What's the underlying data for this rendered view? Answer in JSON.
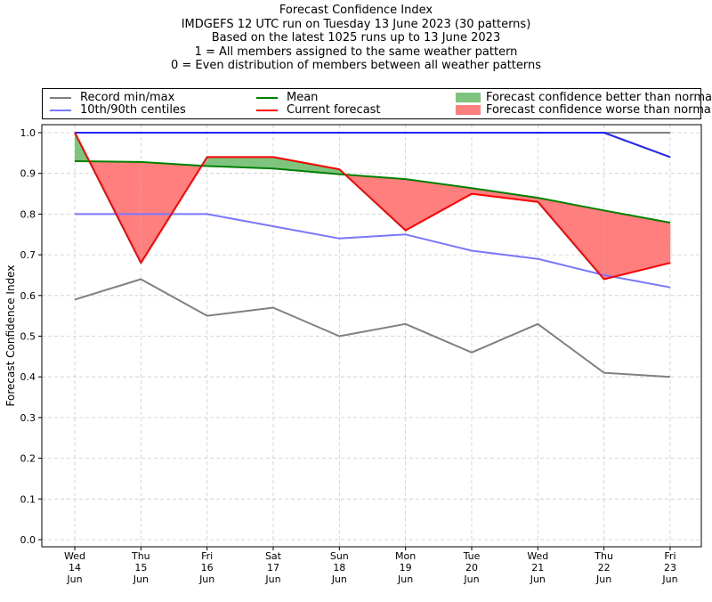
{
  "title_lines": [
    "Forecast Confidence Index",
    "IMDGEFS 12 UTC run on Tuesday 13 June 2023 (30 patterns)",
    "Based on the latest 1025 runs up to 13 June 2023",
    "1 = All members assigned to the same weather pattern",
    "0 = Even distribution of members between all weather patterns"
  ],
  "legend": {
    "record": "Record min/max",
    "centiles": "10th/90th centiles",
    "mean": "Mean",
    "current": "Current forecast",
    "better": "Forecast confidence better than normal",
    "worse": "Forecast confidence worse than normal"
  },
  "colors": {
    "record": "#808080",
    "centiles": "#7777ff",
    "p90": "#2222ff",
    "mean": "#008000",
    "current": "#ff0000",
    "better_fill": "#7ec47e",
    "worse_fill": "#ff7f7f"
  },
  "chart_data": {
    "type": "line",
    "title": "Forecast Confidence Index",
    "ylabel": "Forecast Confidence Index",
    "xlabel": "",
    "ylim": [
      0,
      1
    ],
    "yticks": [
      "0.0",
      "0.1",
      "0.2",
      "0.3",
      "0.4",
      "0.5",
      "0.6",
      "0.7",
      "0.8",
      "0.9",
      "1.0"
    ],
    "grid": true,
    "legend_position": "top, above plot",
    "categories": [
      [
        "Wed",
        "14",
        "Jun"
      ],
      [
        "Thu",
        "15",
        "Jun"
      ],
      [
        "Fri",
        "16",
        "Jun"
      ],
      [
        "Sat",
        "17",
        "Jun"
      ],
      [
        "Sun",
        "18",
        "Jun"
      ],
      [
        "Mon",
        "19",
        "Jun"
      ],
      [
        "Tue",
        "20",
        "Jun"
      ],
      [
        "Wed",
        "21",
        "Jun"
      ],
      [
        "Thu",
        "22",
        "Jun"
      ],
      [
        "Fri",
        "23",
        "Jun"
      ]
    ],
    "series": [
      {
        "name": "Record max",
        "values": [
          1.0,
          1.0,
          1.0,
          1.0,
          1.0,
          1.0,
          1.0,
          1.0,
          1.0,
          1.0
        ]
      },
      {
        "name": "Record min",
        "values": [
          0.59,
          0.64,
          0.55,
          0.57,
          0.5,
          0.53,
          0.46,
          0.53,
          0.41,
          0.4
        ]
      },
      {
        "name": "90th centile",
        "values": [
          1.0,
          1.0,
          1.0,
          1.0,
          1.0,
          1.0,
          1.0,
          1.0,
          1.0,
          0.94
        ]
      },
      {
        "name": "10th centile",
        "values": [
          0.8,
          0.8,
          0.8,
          0.77,
          0.74,
          0.75,
          0.71,
          0.69,
          0.65,
          0.62
        ]
      },
      {
        "name": "Mean",
        "values": [
          0.93,
          0.928,
          0.918,
          0.912,
          0.898,
          0.886,
          0.864,
          0.84,
          0.809,
          0.779
        ]
      },
      {
        "name": "Current forecast",
        "values": [
          1.0,
          0.68,
          0.94,
          0.94,
          0.91,
          0.76,
          0.85,
          0.83,
          0.64,
          0.68
        ]
      }
    ]
  }
}
